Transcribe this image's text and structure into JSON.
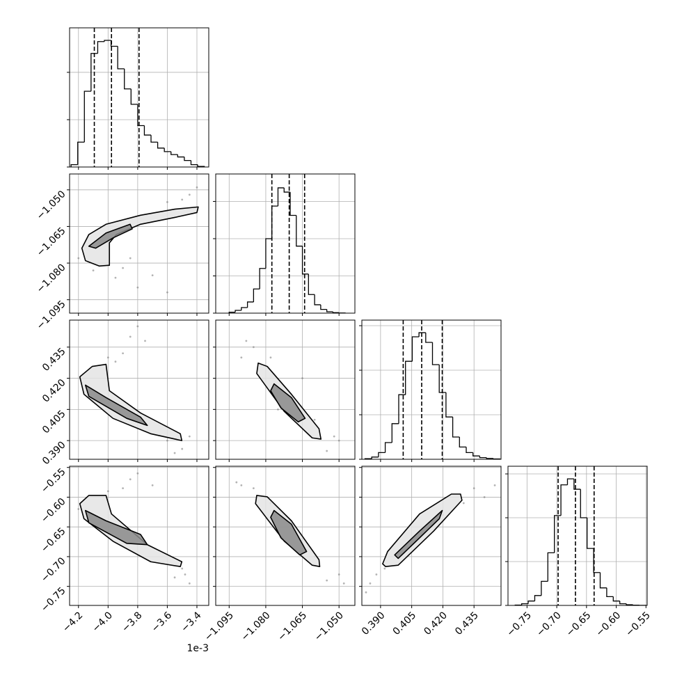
{
  "chart_data": {
    "type": "corner",
    "grid": true,
    "hist_color": "#000000",
    "point_color": "#808080",
    "contour_color": "#000000",
    "contour_fills": [
      "#e4e4e4",
      "#8a8a8a"
    ],
    "grid_color": "#b0b0b0",
    "x_offset_label": "1e-3",
    "parameters": [
      {
        "lim": [
          -4.26,
          -3.32
        ],
        "ticks": [
          {
            "value": -4.2,
            "label": "−4.2"
          },
          {
            "value": -4.0,
            "label": "−4.0"
          },
          {
            "value": -3.8,
            "label": "−3.8"
          },
          {
            "value": -3.6,
            "label": "−3.6"
          },
          {
            "value": -3.4,
            "label": "−3.4"
          }
        ],
        "bins": [
          -4.25,
          -4.205,
          -4.16,
          -4.115,
          -4.07,
          -4.025,
          -3.98,
          -3.935,
          -3.89,
          -3.845,
          -3.8,
          -3.755,
          -3.71,
          -3.665,
          -3.62,
          -3.575,
          -3.53,
          -3.485,
          -3.44,
          -3.395,
          -3.35
        ],
        "counts": [
          20,
          210,
          640,
          960,
          1060,
          1070,
          1020,
          830,
          660,
          530,
          350,
          270,
          210,
          160,
          130,
          105,
          85,
          55,
          20,
          5
        ],
        "quantiles": [
          -4.093,
          -3.977,
          -3.791
        ],
        "hist_ylim": [
          0,
          1176
        ],
        "hist_yticks": [
          0,
          400,
          800
        ]
      },
      {
        "lim": [
          -1.1005,
          -1.0435
        ],
        "ticks": [
          {
            "value": -1.095,
            "label": "−1.095"
          },
          {
            "value": -1.08,
            "label": "−1.080"
          },
          {
            "value": -1.065,
            "label": "−1.065"
          },
          {
            "value": -1.05,
            "label": "−1.050"
          }
        ],
        "bins": [
          -1.095,
          -1.0925,
          -1.09,
          -1.0875,
          -1.085,
          -1.0825,
          -1.08,
          -1.0775,
          -1.075,
          -1.0725,
          -1.07,
          -1.0675,
          -1.065,
          -1.0625,
          -1.06,
          -1.0575,
          -1.055,
          -1.0525,
          -1.05,
          -1.0475
        ],
        "counts": [
          10,
          30,
          60,
          120,
          260,
          480,
          800,
          1150,
          1346,
          1300,
          1050,
          720,
          420,
          200,
          90,
          40,
          15,
          5,
          2
        ],
        "quantiles": [
          -1.0775,
          -1.0704,
          -1.0641
        ],
        "hist_ylim": [
          0,
          1495
        ],
        "hist_yticks": [
          0,
          400,
          800,
          1200
        ]
      },
      {
        "lim": [
          0.381,
          0.448
        ],
        "ticks": [
          {
            "value": 0.39,
            "label": "0.390"
          },
          0.405,
          {
            "value": 0.42,
            "label": "0.420"
          },
          0.435
        ],
        "bins": [
          0.3825,
          0.38575,
          0.389,
          0.39225,
          0.3955,
          0.39875,
          0.402,
          0.40525,
          0.4085,
          0.41175,
          0.415,
          0.41825,
          0.4215,
          0.42475,
          0.428,
          0.43125,
          0.4345,
          0.43775,
          0.441,
          0.44425,
          0.4475
        ],
        "counts": [
          5,
          20,
          60,
          150,
          320,
          580,
          880,
          1100,
          1137,
          1050,
          850,
          600,
          380,
          200,
          110,
          60,
          30,
          15,
          8,
          3
        ],
        "quantiles": [
          0.4009,
          0.4098,
          0.4197
        ],
        "hist_ylim": [
          0,
          1250
        ],
        "hist_yticks": [
          0,
          400,
          800,
          1200
        ]
      },
      {
        "lim": [
          -0.782,
          -0.548
        ],
        "ticks": [
          {
            "value": -0.75,
            "label": "−0.75"
          },
          {
            "value": -0.7,
            "label": "−0.70"
          },
          {
            "value": -0.65,
            "label": "−0.65"
          },
          {
            "value": -0.6,
            "label": "−0.60"
          },
          {
            "value": -0.55,
            "label": "−0.55"
          }
        ],
        "bins": [
          -0.77,
          -0.759,
          -0.748,
          -0.737,
          -0.726,
          -0.715,
          -0.704,
          -0.693,
          -0.682,
          -0.671,
          -0.66,
          -0.649,
          -0.638,
          -0.627,
          -0.616,
          -0.605,
          -0.594,
          -0.583,
          -0.572,
          -0.561,
          -0.55
        ],
        "counts": [
          3,
          15,
          40,
          90,
          220,
          480,
          820,
          1100,
          1155,
          1060,
          800,
          520,
          300,
          160,
          80,
          40,
          15,
          6,
          2,
          1
        ],
        "quantiles": [
          -0.6977,
          -0.6686,
          -0.6372
        ],
        "hist_ylim": [
          0,
          1270
        ],
        "hist_yticks": [
          0,
          400,
          800,
          1200
        ]
      }
    ],
    "pairs": [
      {
        "x_param": 0,
        "y_param": 1,
        "contours": [
          {
            "x": [
              -4.177,
              -4.13,
              -4.014,
              -3.781,
              -3.549,
              -3.391,
              -3.4,
              -3.549,
              -3.781,
              -3.944,
              -3.991,
              -3.991,
              -4.06,
              -4.153
            ],
            "y": [
              -1.0739,
              -1.0683,
              -1.0641,
              -1.0604,
              -1.0579,
              -1.057,
              -1.0593,
              -1.0613,
              -1.0641,
              -1.0683,
              -1.0717,
              -1.0809,
              -1.0812,
              -1.079
            ]
          },
          {
            "x": [
              -4.13,
              -4.014,
              -3.851,
              -3.837,
              -3.967,
              -4.084
            ],
            "y": [
              -1.0731,
              -1.0677,
              -1.0641,
              -1.066,
              -1.0697,
              -1.0739
            ]
          }
        ],
        "points": {
          "x": [
            -3.45,
            -3.5,
            -3.9,
            -3.8,
            -3.7,
            -4.1,
            -3.95,
            -3.6,
            -3.4,
            -3.85,
            -4.2,
            -3.6
          ],
          "y": [
            -1.052,
            -1.054,
            -1.082,
            -1.09,
            -1.085,
            -1.083,
            -1.086,
            -1.055,
            -1.049,
            -1.078,
            -1.078,
            -1.092
          ]
        }
      },
      {
        "x_param": 0,
        "y_param": 2,
        "contours": [
          {
            "x": [
              -4.191,
              -4.107,
              -4.014,
              -3.991,
              -3.781,
              -3.512,
              -3.502,
              -3.712,
              -3.967,
              -4.163
            ],
            "y": [
              0.4207,
              0.4257,
              0.4267,
              0.414,
              0.4033,
              0.3933,
              0.39,
              0.3933,
              0.4007,
              0.4123
            ]
          },
          {
            "x": [
              -4.153,
              -4.014,
              -3.781,
              -3.735,
              -3.874,
              -4.13
            ],
            "y": [
              0.4167,
              0.4107,
              0.4013,
              0.3973,
              0.4007,
              0.4113
            ]
          }
        ],
        "points": {
          "x": [
            -3.85,
            -3.9,
            -3.8,
            -3.95,
            -3.5,
            -3.45,
            -3.55,
            -4.0,
            -3.75,
            -3.6
          ],
          "y": [
            0.44,
            0.432,
            0.445,
            0.428,
            0.386,
            0.392,
            0.384,
            0.43,
            0.438,
            0.39
          ]
        }
      },
      {
        "x_param": 0,
        "y_param": 3,
        "contours": [
          {
            "x": [
              -4.191,
              -4.13,
              -4.014,
              -3.977,
              -3.735,
              -3.502,
              -3.512,
              -3.712,
              -3.967,
              -4.163
            ],
            "y": [
              -0.6109,
              -0.5971,
              -0.5971,
              -0.6282,
              -0.6799,
              -0.7086,
              -0.7167,
              -0.7086,
              -0.6741,
              -0.6362
            ]
          },
          {
            "x": [
              -4.153,
              -4.014,
              -3.781,
              -3.735,
              -3.874,
              -4.13
            ],
            "y": [
              -0.6224,
              -0.6397,
              -0.6626,
              -0.6799,
              -0.6776,
              -0.6431
            ]
          }
        ],
        "points": {
          "x": [
            -3.85,
            -3.9,
            -3.8,
            -3.5,
            -3.45,
            -3.55,
            -4.0,
            -3.7,
            -3.48,
            -4.2
          ],
          "y": [
            -0.57,
            -0.585,
            -0.56,
            -0.72,
            -0.745,
            -0.735,
            -0.59,
            -0.58,
            -0.73,
            -0.62
          ]
        }
      },
      {
        "x_param": 1,
        "y_param": 2,
        "contours": [
          {
            "x": [
              -1.0831,
              -1.0794,
              -1.0695,
              -1.0582,
              -1.0574,
              -1.061,
              -1.0724,
              -1.0837
            ],
            "y": [
              0.4273,
              0.4257,
              0.4123,
              0.3957,
              0.3907,
              0.3913,
              0.404,
              0.4223
            ]
          },
          {
            "x": [
              -1.0766,
              -1.0695,
              -1.0639,
              -1.0667,
              -1.0738,
              -1.078
            ],
            "y": [
              0.4173,
              0.4107,
              0.4007,
              0.399,
              0.4057,
              0.414
            ]
          }
        ],
        "points": {
          "x": [
            -1.09,
            -1.085,
            -1.05,
            -1.055,
            -1.078,
            -1.06,
            -1.075,
            -1.065,
            -1.088,
            -1.052
          ],
          "y": [
            0.43,
            0.435,
            0.39,
            0.385,
            0.43,
            0.4,
            0.405,
            0.42,
            0.438,
            0.392
          ]
        }
      },
      {
        "x_param": 1,
        "y_param": 3,
        "contours": [
          {
            "x": [
              -1.0837,
              -1.0794,
              -1.0695,
              -1.0582,
              -1.0579,
              -1.061,
              -1.0724,
              -1.0842
            ],
            "y": [
              -0.5971,
              -0.5994,
              -0.6397,
              -0.7052,
              -0.7167,
              -0.7144,
              -0.6741,
              -0.6109
            ]
          },
          {
            "x": [
              -1.0766,
              -1.0695,
              -1.0633,
              -1.0661,
              -1.0738,
              -1.078
            ],
            "y": [
              -0.6224,
              -0.6454,
              -0.6914,
              -0.6971,
              -0.6684,
              -0.6339
            ]
          }
        ],
        "points": {
          "x": [
            -1.09,
            -1.085,
            -1.05,
            -1.055,
            -1.078,
            -1.06,
            -1.07,
            -1.065,
            -1.092,
            -1.048
          ],
          "y": [
            -0.58,
            -0.585,
            -0.73,
            -0.74,
            -0.61,
            -0.7,
            -0.64,
            -0.67,
            -0.575,
            -0.745
          ]
        }
      },
      {
        "x_param": 2,
        "y_param": 3,
        "contours": [
          {
            "x": [
              0.391,
              0.3924,
              0.3985,
              0.4156,
              0.4292,
              0.4285,
              0.4241,
              0.4088,
              0.3934
            ],
            "y": [
              -0.7121,
              -0.7167,
              -0.7144,
              -0.6569,
              -0.6052,
              -0.5948,
              -0.5948,
              -0.6282,
              -0.6914
            ]
          },
          {
            "x": [
              0.3968,
              0.4088,
              0.4197,
              0.4183,
              0.4081,
              0.3985
            ],
            "y": [
              -0.6971,
              -0.6569,
              -0.6224,
              -0.6362,
              -0.6707,
              -0.7029
            ]
          }
        ],
        "points": {
          "x": [
            0.385,
            0.388,
            0.44,
            0.435,
            0.392,
            0.43,
            0.41,
            0.42,
            0.383,
            0.445
          ],
          "y": [
            -0.745,
            -0.73,
            -0.6,
            -0.585,
            -0.72,
            -0.61,
            -0.66,
            -0.63,
            -0.76,
            -0.58
          ]
        }
      }
    ]
  }
}
